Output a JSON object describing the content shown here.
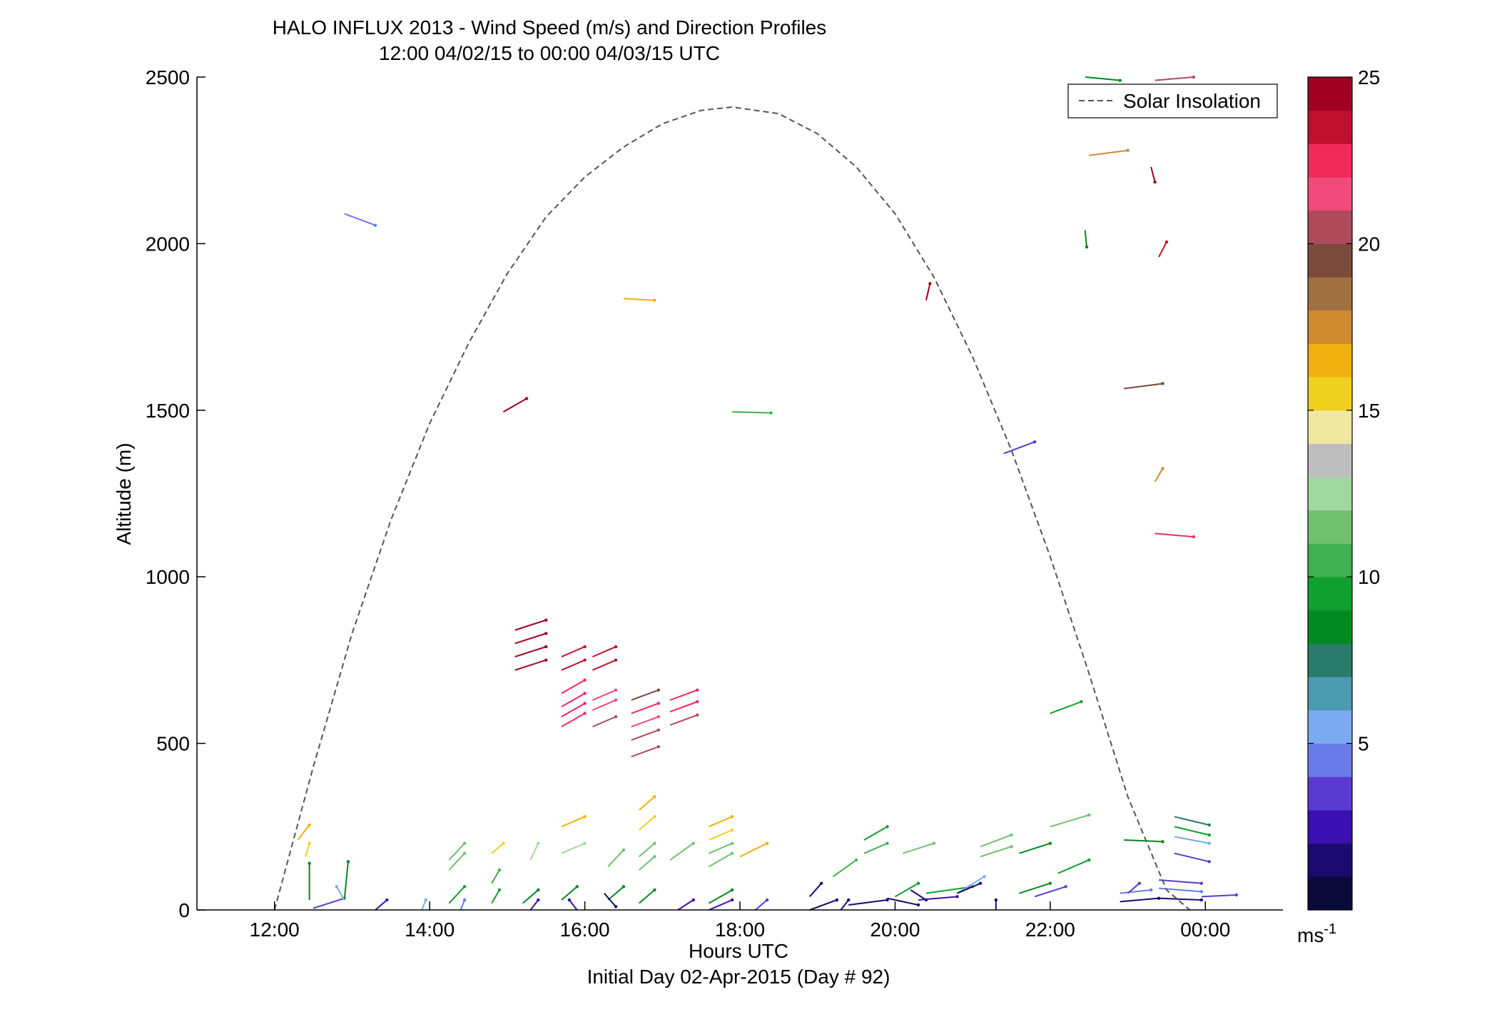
{
  "chart_data": {
    "type": "line",
    "title": "HALO INFLUX 2013 - Wind Speed (m/s) and Direction Profiles",
    "subtitle": "12:00 04/02/15 to 00:00 04/03/15  UTC",
    "xlabel": "Hours UTC",
    "xlabel2": "Initial Day 02-Apr-2015 (Day # 92)",
    "ylabel": "Altitude (m)",
    "xlim": [
      11.0,
      25.0
    ],
    "ylim": [
      0,
      2500
    ],
    "x_ticks": [
      12,
      14,
      16,
      18,
      20,
      22,
      24
    ],
    "x_tick_labels": [
      "12:00",
      "14:00",
      "16:00",
      "18:00",
      "20:00",
      "22:00",
      "00:00"
    ],
    "y_ticks": [
      0,
      500,
      1000,
      1500,
      2000,
      2500
    ],
    "y_tick_labels": [
      "0",
      "500",
      "1000",
      "1500",
      "2000",
      "2500"
    ],
    "grid": false,
    "legend": {
      "placement": "top-right",
      "entries": [
        "Solar Insolation"
      ]
    },
    "colorbar": {
      "label": "ms",
      "label_superscript": "-1",
      "range": [
        0,
        25
      ],
      "ticks": [
        5,
        10,
        15,
        20,
        25
      ],
      "tick_labels": [
        "5",
        "10",
        "15",
        "20",
        "25"
      ],
      "colormap": [
        "#0a0a3a",
        "#1a0a6e",
        "#3a10b0",
        "#5a3ad0",
        "#6a7ae8",
        "#7aaaf0",
        "#4a9ab0",
        "#2a7a6a",
        "#008a20",
        "#10a030",
        "#40b050",
        "#70c070",
        "#a0d8a0",
        "#bebebe",
        "#f0e8a0",
        "#f0d020",
        "#f0b010",
        "#d08a30",
        "#a07040",
        "#7a4a3a",
        "#b04a5a",
        "#f04a7a",
        "#f02a5a",
        "#c01030",
        "#a00020"
      ]
    },
    "series": [
      {
        "name": "Solar Insolation",
        "style": "dashed",
        "color": "#555555",
        "x": [
          12.0,
          12.5,
          13.0,
          13.5,
          14.0,
          14.5,
          15.0,
          15.5,
          16.0,
          16.5,
          17.0,
          17.5,
          17.9,
          18.5,
          19.0,
          19.5,
          20.0,
          20.5,
          21.0,
          21.5,
          22.0,
          22.5,
          23.0,
          23.5,
          23.8
        ],
        "y": [
          0,
          430,
          830,
          1170,
          1460,
          1700,
          1910,
          2080,
          2200,
          2290,
          2360,
          2400,
          2410,
          2390,
          2330,
          2230,
          2090,
          1900,
          1660,
          1380,
          1060,
          710,
          340,
          60,
          0
        ]
      }
    ],
    "wind_vectors": [
      {
        "x": 12.3,
        "y": 210,
        "dx": 0.15,
        "dy": 45,
        "speed": 16
      },
      {
        "x": 12.4,
        "y": 160,
        "dx": 0.05,
        "dy": 40,
        "speed": 15
      },
      {
        "x": 12.45,
        "y": 30,
        "dx": 0.0,
        "dy": 110,
        "speed": 8
      },
      {
        "x": 12.5,
        "y": 5,
        "dx": 0.4,
        "dy": 30,
        "speed": 3
      },
      {
        "x": 12.9,
        "y": 30,
        "dx": 0.05,
        "dy": 115,
        "speed": 8
      },
      {
        "x": 12.9,
        "y": 30,
        "dx": -0.1,
        "dy": 40,
        "speed": 5
      },
      {
        "x": 12.9,
        "y": 2090,
        "dx": 0.4,
        "dy": -35,
        "speed": 4
      },
      {
        "x": 13.3,
        "y": 0,
        "dx": 0.15,
        "dy": 30,
        "speed": 2
      },
      {
        "x": 13.9,
        "y": 0,
        "dx": 0.05,
        "dy": 30,
        "speed": 5
      },
      {
        "x": 14.25,
        "y": 150,
        "dx": 0.2,
        "dy": 50,
        "speed": 11
      },
      {
        "x": 14.25,
        "y": 120,
        "dx": 0.2,
        "dy": 50,
        "speed": 11
      },
      {
        "x": 14.25,
        "y": 20,
        "dx": 0.2,
        "dy": 50,
        "speed": 9
      },
      {
        "x": 14.4,
        "y": 0,
        "dx": 0.05,
        "dy": 30,
        "speed": 4
      },
      {
        "x": 14.8,
        "y": 170,
        "dx": 0.15,
        "dy": 30,
        "speed": 15
      },
      {
        "x": 14.8,
        "y": 80,
        "dx": 0.1,
        "dy": 40,
        "speed": 10
      },
      {
        "x": 14.8,
        "y": 20,
        "dx": 0.1,
        "dy": 40,
        "speed": 9
      },
      {
        "x": 14.95,
        "y": 1495,
        "dx": 0.3,
        "dy": 40,
        "speed": 24
      },
      {
        "x": 15.3,
        "y": 150,
        "dx": 0.1,
        "dy": 50,
        "speed": 12
      },
      {
        "x": 15.2,
        "y": 20,
        "dx": 0.2,
        "dy": 40,
        "speed": 8
      },
      {
        "x": 15.3,
        "y": 0,
        "dx": 0.1,
        "dy": 30,
        "speed": 2
      },
      {
        "x": 15.1,
        "y": 840,
        "dx": 0.4,
        "dy": 30,
        "speed": 25
      },
      {
        "x": 15.1,
        "y": 800,
        "dx": 0.4,
        "dy": 30,
        "speed": 25
      },
      {
        "x": 15.1,
        "y": 760,
        "dx": 0.4,
        "dy": 30,
        "speed": 24
      },
      {
        "x": 15.1,
        "y": 720,
        "dx": 0.4,
        "dy": 30,
        "speed": 24
      },
      {
        "x": 15.7,
        "y": 760,
        "dx": 0.3,
        "dy": 30,
        "speed": 23
      },
      {
        "x": 15.7,
        "y": 720,
        "dx": 0.3,
        "dy": 30,
        "speed": 23
      },
      {
        "x": 15.7,
        "y": 650,
        "dx": 0.3,
        "dy": 40,
        "speed": 22
      },
      {
        "x": 15.7,
        "y": 610,
        "dx": 0.3,
        "dy": 40,
        "speed": 22
      },
      {
        "x": 15.7,
        "y": 580,
        "dx": 0.3,
        "dy": 40,
        "speed": 22
      },
      {
        "x": 15.7,
        "y": 550,
        "dx": 0.3,
        "dy": 40,
        "speed": 22
      },
      {
        "x": 15.7,
        "y": 250,
        "dx": 0.3,
        "dy": 30,
        "speed": 16
      },
      {
        "x": 15.7,
        "y": 170,
        "dx": 0.3,
        "dy": 30,
        "speed": 12
      },
      {
        "x": 15.7,
        "y": 30,
        "dx": 0.2,
        "dy": 40,
        "speed": 8
      },
      {
        "x": 15.9,
        "y": 0,
        "dx": -0.1,
        "dy": 30,
        "speed": 2
      },
      {
        "x": 16.1,
        "y": 760,
        "dx": 0.3,
        "dy": 30,
        "speed": 23
      },
      {
        "x": 16.1,
        "y": 720,
        "dx": 0.3,
        "dy": 30,
        "speed": 23
      },
      {
        "x": 16.1,
        "y": 630,
        "dx": 0.3,
        "dy": 30,
        "speed": 21
      },
      {
        "x": 16.1,
        "y": 600,
        "dx": 0.3,
        "dy": 30,
        "speed": 21
      },
      {
        "x": 16.1,
        "y": 550,
        "dx": 0.3,
        "dy": 30,
        "speed": 20
      },
      {
        "x": 16.3,
        "y": 130,
        "dx": 0.2,
        "dy": 50,
        "speed": 11
      },
      {
        "x": 16.3,
        "y": 30,
        "dx": 0.2,
        "dy": 40,
        "speed": 8
      },
      {
        "x": 16.25,
        "y": 50,
        "dx": 0.15,
        "dy": -40,
        "speed": 1
      },
      {
        "x": 16.6,
        "y": 630,
        "dx": 0.35,
        "dy": 30,
        "speed": 19
      },
      {
        "x": 16.6,
        "y": 590,
        "dx": 0.35,
        "dy": 30,
        "speed": 22
      },
      {
        "x": 16.6,
        "y": 550,
        "dx": 0.35,
        "dy": 30,
        "speed": 21
      },
      {
        "x": 16.6,
        "y": 510,
        "dx": 0.35,
        "dy": 30,
        "speed": 20
      },
      {
        "x": 16.6,
        "y": 460,
        "dx": 0.35,
        "dy": 30,
        "speed": 20
      },
      {
        "x": 16.7,
        "y": 300,
        "dx": 0.2,
        "dy": 40,
        "speed": 16
      },
      {
        "x": 16.7,
        "y": 240,
        "dx": 0.2,
        "dy": 40,
        "speed": 15
      },
      {
        "x": 16.7,
        "y": 160,
        "dx": 0.2,
        "dy": 40,
        "speed": 11
      },
      {
        "x": 16.7,
        "y": 120,
        "dx": 0.2,
        "dy": 40,
        "speed": 11
      },
      {
        "x": 16.7,
        "y": 20,
        "dx": 0.2,
        "dy": 40,
        "speed": 8
      },
      {
        "x": 16.5,
        "y": 1835,
        "dx": 0.4,
        "dy": -5,
        "speed": 16
      },
      {
        "x": 17.1,
        "y": 630,
        "dx": 0.35,
        "dy": 30,
        "speed": 22
      },
      {
        "x": 17.1,
        "y": 595,
        "dx": 0.35,
        "dy": 30,
        "speed": 22
      },
      {
        "x": 17.1,
        "y": 555,
        "dx": 0.35,
        "dy": 30,
        "speed": 20
      },
      {
        "x": 17.1,
        "y": 150,
        "dx": 0.3,
        "dy": 50,
        "speed": 11
      },
      {
        "x": 17.2,
        "y": 0,
        "dx": 0.2,
        "dy": 30,
        "speed": 2
      },
      {
        "x": 17.6,
        "y": 250,
        "dx": 0.3,
        "dy": 30,
        "speed": 16
      },
      {
        "x": 17.6,
        "y": 210,
        "dx": 0.3,
        "dy": 30,
        "speed": 15
      },
      {
        "x": 17.6,
        "y": 170,
        "dx": 0.3,
        "dy": 30,
        "speed": 11
      },
      {
        "x": 17.6,
        "y": 130,
        "dx": 0.3,
        "dy": 40,
        "speed": 11
      },
      {
        "x": 17.6,
        "y": 20,
        "dx": 0.3,
        "dy": 40,
        "speed": 8
      },
      {
        "x": 17.6,
        "y": 0,
        "dx": 0.3,
        "dy": 30,
        "speed": 2
      },
      {
        "x": 17.9,
        "y": 1495,
        "dx": 0.5,
        "dy": -3,
        "speed": 10
      },
      {
        "x": 18.0,
        "y": 160,
        "dx": 0.35,
        "dy": 40,
        "speed": 16
      },
      {
        "x": 18.2,
        "y": 0,
        "dx": 0.15,
        "dy": 30,
        "speed": 3
      },
      {
        "x": 18.9,
        "y": 40,
        "dx": 0.15,
        "dy": 40,
        "speed": 1
      },
      {
        "x": 18.9,
        "y": 0,
        "dx": 0.35,
        "dy": 30,
        "speed": 1
      },
      {
        "x": 19.2,
        "y": 100,
        "dx": 0.3,
        "dy": 50,
        "speed": 10
      },
      {
        "x": 19.3,
        "y": 0,
        "dx": 0.1,
        "dy": 30,
        "speed": 1
      },
      {
        "x": 19.4,
        "y": 15,
        "dx": 0.5,
        "dy": 15,
        "speed": 1
      },
      {
        "x": 19.6,
        "y": 170,
        "dx": 0.3,
        "dy": 30,
        "speed": 10
      },
      {
        "x": 19.6,
        "y": 210,
        "dx": 0.3,
        "dy": 40,
        "speed": 9
      },
      {
        "x": 19.9,
        "y": 35,
        "dx": 0.4,
        "dy": -20,
        "speed": 1
      },
      {
        "x": 20.0,
        "y": 40,
        "dx": 0.3,
        "dy": 40,
        "speed": 9
      },
      {
        "x": 20.1,
        "y": 170,
        "dx": 0.4,
        "dy": 30,
        "speed": 11
      },
      {
        "x": 20.2,
        "y": 60,
        "dx": 0.2,
        "dy": -30,
        "speed": 1
      },
      {
        "x": 20.3,
        "y": 30,
        "dx": 0.5,
        "dy": 10,
        "speed": 2
      },
      {
        "x": 20.4,
        "y": 50,
        "dx": 0.6,
        "dy": 20,
        "speed": 9
      },
      {
        "x": 20.8,
        "y": 50,
        "dx": 0.35,
        "dy": 50,
        "speed": 5
      },
      {
        "x": 20.8,
        "y": 50,
        "dx": 0.3,
        "dy": 30,
        "speed": 1
      },
      {
        "x": 20.4,
        "y": 1830,
        "dx": 0.05,
        "dy": 50,
        "speed": 25
      },
      {
        "x": 21.1,
        "y": 190,
        "dx": 0.4,
        "dy": 35,
        "speed": 11
      },
      {
        "x": 21.1,
        "y": 160,
        "dx": 0.4,
        "dy": 30,
        "speed": 11
      },
      {
        "x": 21.3,
        "y": 0,
        "dx": 0.0,
        "dy": 30,
        "speed": 1
      },
      {
        "x": 21.4,
        "y": 1370,
        "dx": 0.4,
        "dy": 35,
        "speed": 3
      },
      {
        "x": 21.6,
        "y": 170,
        "dx": 0.4,
        "dy": 30,
        "speed": 8
      },
      {
        "x": 21.6,
        "y": 50,
        "dx": 0.4,
        "dy": 30,
        "speed": 8
      },
      {
        "x": 21.8,
        "y": 40,
        "dx": 0.4,
        "dy": 30,
        "speed": 3
      },
      {
        "x": 22.0,
        "y": 250,
        "dx": 0.5,
        "dy": 35,
        "speed": 11
      },
      {
        "x": 22.1,
        "y": 110,
        "dx": 0.4,
        "dy": 40,
        "speed": 9
      },
      {
        "x": 22.0,
        "y": 590,
        "dx": 0.4,
        "dy": 35,
        "speed": 9
      },
      {
        "x": 22.45,
        "y": 2040,
        "dx": 0.02,
        "dy": -50,
        "speed": 8
      },
      {
        "x": 22.45,
        "y": 2500,
        "dx": 0.45,
        "dy": -10,
        "speed": 8
      },
      {
        "x": 22.5,
        "y": 2265,
        "dx": 0.5,
        "dy": 15,
        "speed": 17
      },
      {
        "x": 22.95,
        "y": 1565,
        "dx": 0.5,
        "dy": 15,
        "speed": 19
      },
      {
        "x": 22.95,
        "y": 210,
        "dx": 0.5,
        "dy": -5,
        "speed": 8
      },
      {
        "x": 22.9,
        "y": 50,
        "dx": 0.4,
        "dy": 10,
        "speed": 4
      },
      {
        "x": 22.9,
        "y": 25,
        "dx": 0.5,
        "dy": 10,
        "speed": 1
      },
      {
        "x": 23.0,
        "y": 50,
        "dx": 0.15,
        "dy": 30,
        "speed": 3
      },
      {
        "x": 23.3,
        "y": 2230,
        "dx": 0.05,
        "dy": -45,
        "speed": 25
      },
      {
        "x": 23.35,
        "y": 1285,
        "dx": 0.1,
        "dy": 40,
        "speed": 17
      },
      {
        "x": 23.35,
        "y": 2490,
        "dx": 0.5,
        "dy": 10,
        "speed": 20
      },
      {
        "x": 23.4,
        "y": 1960,
        "dx": 0.1,
        "dy": 45,
        "speed": 23
      },
      {
        "x": 23.35,
        "y": 1130,
        "dx": 0.5,
        "dy": -10,
        "speed": 22
      },
      {
        "x": 23.6,
        "y": 280,
        "dx": 0.45,
        "dy": -25,
        "speed": 7
      },
      {
        "x": 23.6,
        "y": 250,
        "dx": 0.45,
        "dy": -25,
        "speed": 9
      },
      {
        "x": 23.6,
        "y": 220,
        "dx": 0.45,
        "dy": -20,
        "speed": 5
      },
      {
        "x": 23.6,
        "y": 170,
        "dx": 0.45,
        "dy": -25,
        "speed": 3
      },
      {
        "x": 23.4,
        "y": 90,
        "dx": 0.55,
        "dy": -10,
        "speed": 3
      },
      {
        "x": 23.4,
        "y": 65,
        "dx": 0.55,
        "dy": -10,
        "speed": 4
      },
      {
        "x": 23.4,
        "y": 35,
        "dx": 0.55,
        "dy": -5,
        "speed": 1
      },
      {
        "x": 23.95,
        "y": 40,
        "dx": 0.45,
        "dy": 5,
        "speed": 3
      }
    ]
  }
}
